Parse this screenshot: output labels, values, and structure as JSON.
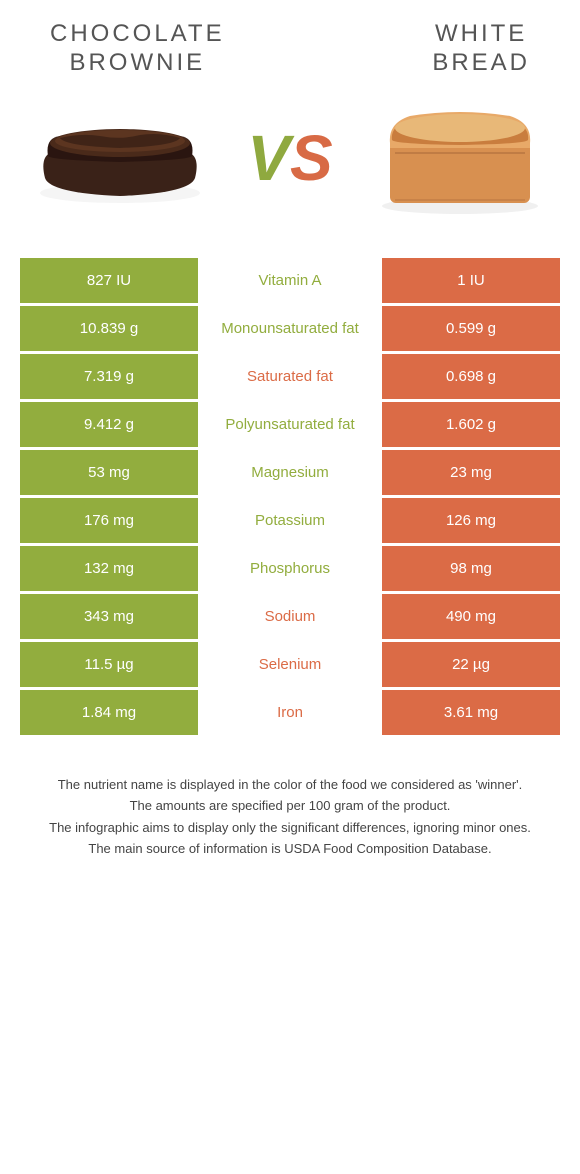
{
  "colors": {
    "olive": "#92ad3e",
    "coral": "#db6b46",
    "white": "#ffffff",
    "title": "#555555",
    "footnote": "#444444"
  },
  "food_left": {
    "title": "CHOCOLATE\nBROWNIE"
  },
  "food_right": {
    "title": "WHITE\nBREAD"
  },
  "vs": {
    "v": "V",
    "s": "S"
  },
  "rows": [
    {
      "left": "827 IU",
      "label": "Vitamin A",
      "right": "1 IU",
      "winner": "left"
    },
    {
      "left": "10.839 g",
      "label": "Monounsaturated fat",
      "right": "0.599 g",
      "winner": "left"
    },
    {
      "left": "7.319 g",
      "label": "Saturated fat",
      "right": "0.698 g",
      "winner": "right"
    },
    {
      "left": "9.412 g",
      "label": "Polyunsaturated fat",
      "right": "1.602 g",
      "winner": "left"
    },
    {
      "left": "53 mg",
      "label": "Magnesium",
      "right": "23 mg",
      "winner": "left"
    },
    {
      "left": "176 mg",
      "label": "Potassium",
      "right": "126 mg",
      "winner": "left"
    },
    {
      "left": "132 mg",
      "label": "Phosphorus",
      "right": "98 mg",
      "winner": "left"
    },
    {
      "left": "343 mg",
      "label": "Sodium",
      "right": "490 mg",
      "winner": "right"
    },
    {
      "left": "11.5 µg",
      "label": "Selenium",
      "right": "22 µg",
      "winner": "right"
    },
    {
      "left": "1.84 mg",
      "label": "Iron",
      "right": "3.61 mg",
      "winner": "right"
    }
  ],
  "footnotes": [
    "The nutrient name is displayed in the color of the food we considered as 'winner'.",
    "The amounts are specified per 100 gram of the product.",
    "The infographic aims to display only the significant differences, ignoring minor ones.",
    "The main source of information is USDA Food Composition Database."
  ]
}
